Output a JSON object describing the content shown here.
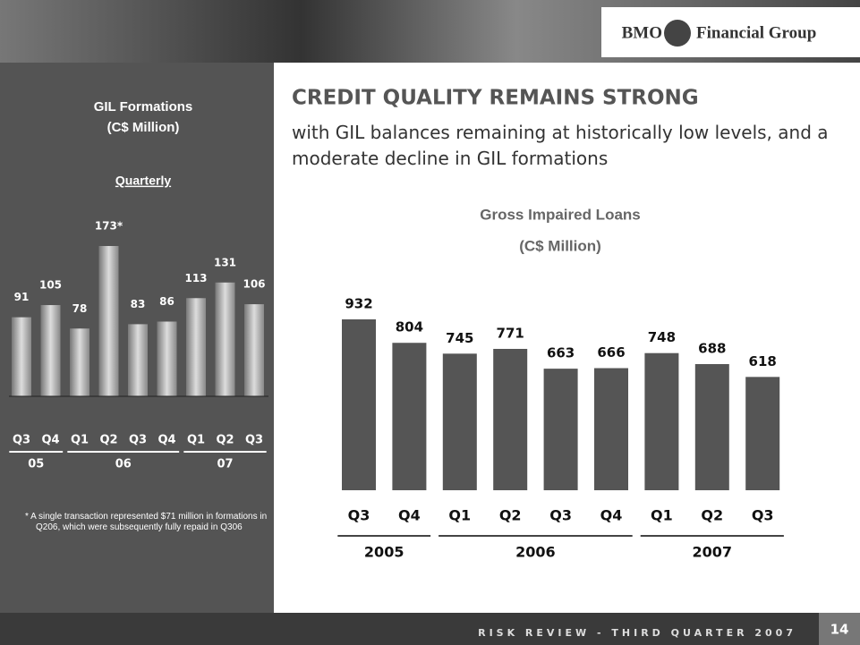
{
  "header": {
    "brand": "BMO",
    "group": "Financial Group"
  },
  "title": "CREDIT QUALITY REMAINS STRONG",
  "subtitle": "with GIL balances remaining at historically low levels, and a moderate decline in GIL formations",
  "footer": "RISK REVIEW - THIRD QUARTER 2007",
  "page_number": "14",
  "chart_data": [
    {
      "type": "bar",
      "title": "GIL Formations",
      "subtitle": "(C$ Million)",
      "period": "Quarterly",
      "groups": [
        {
          "label": "05",
          "categories": [
            "Q3",
            "Q4"
          ]
        },
        {
          "label": "06",
          "categories": [
            "Q1",
            "Q2",
            "Q3",
            "Q4"
          ]
        },
        {
          "label": "07",
          "categories": [
            "Q1",
            "Q2",
            "Q3"
          ]
        }
      ],
      "values": [
        91,
        105,
        78,
        173,
        83,
        86,
        113,
        131,
        106
      ],
      "value_labels": [
        "91",
        "105",
        "78",
        "173*",
        "83",
        "86",
        "113",
        "131",
        "106"
      ],
      "color": "#a0a0a0",
      "note": "* A single transaction represented $71 million in formations in Q206, which were subsequently fully repaid in Q306"
    },
    {
      "type": "bar",
      "title": "Gross Impaired Loans",
      "subtitle": "(C$ Million)",
      "groups": [
        {
          "label": "2005",
          "categories": [
            "Q3",
            "Q4"
          ]
        },
        {
          "label": "2006",
          "categories": [
            "Q1",
            "Q2",
            "Q3",
            "Q4"
          ]
        },
        {
          "label": "2007",
          "categories": [
            "Q1",
            "Q2",
            "Q3"
          ]
        }
      ],
      "values": [
        932,
        804,
        745,
        771,
        663,
        666,
        748,
        688,
        618
      ],
      "color": "#555555"
    }
  ]
}
